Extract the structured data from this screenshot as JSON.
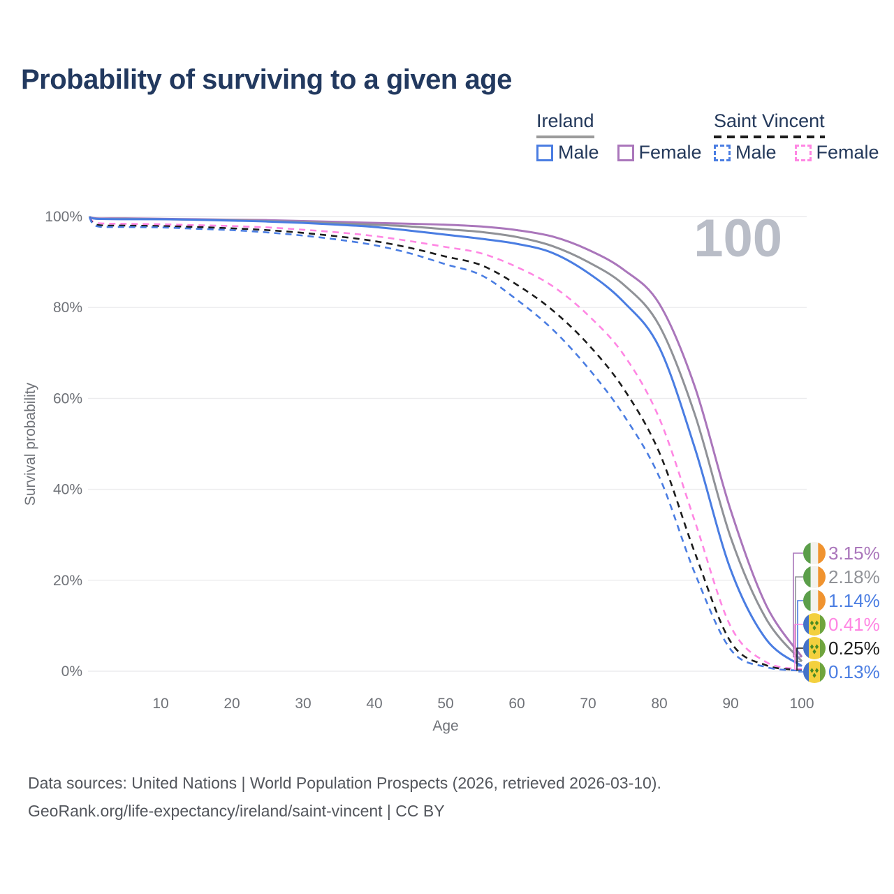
{
  "title": "Probability of surviving to a given age",
  "legend": {
    "groups": [
      {
        "label": "Ireland",
        "underline_style": "solid",
        "underline_color": "#9b9b9b",
        "items": [
          {
            "label": "Male",
            "color": "#4a7de2",
            "dash": false
          },
          {
            "label": "Female",
            "color": "#aa76bb",
            "dash": false
          }
        ]
      },
      {
        "label": "Saint Vincent",
        "underline_style": "dashed",
        "underline_color": "#1c1c1c",
        "items": [
          {
            "label": "Male",
            "color": "#4a7de2",
            "dash": true
          },
          {
            "label": "Female",
            "color": "#ff86e3",
            "dash": true
          }
        ]
      }
    ]
  },
  "chart_data": {
    "type": "line",
    "title": "Probability of surviving to a given age",
    "xlabel": "Age",
    "ylabel": "Survival probability",
    "xlim": [
      0,
      100
    ],
    "ylim": [
      0,
      100
    ],
    "grid": "horizontal",
    "legend_position": "top-right",
    "watermark": "100",
    "x_tick_values": [
      10,
      20,
      30,
      40,
      50,
      60,
      70,
      80,
      90,
      100
    ],
    "y_tick_values": [
      0,
      20,
      40,
      60,
      80,
      100
    ],
    "y_tick_labels": [
      "0%",
      "20%",
      "40%",
      "60%",
      "80%",
      "100%"
    ],
    "ages": [
      0,
      1,
      5,
      10,
      15,
      20,
      25,
      30,
      35,
      40,
      45,
      50,
      55,
      60,
      65,
      70,
      75,
      80,
      85,
      90,
      95,
      100
    ],
    "series": [
      {
        "name": "Ireland — Female",
        "country": "Ireland",
        "sex": "Female",
        "color": "#aa76bb",
        "dashed": false,
        "flag": "ireland",
        "end_label": "3.15%",
        "values": [
          99.9,
          99.6,
          99.6,
          99.5,
          99.4,
          99.3,
          99.2,
          99.0,
          98.8,
          98.6,
          98.4,
          98.2,
          97.8,
          97.0,
          95.6,
          92.7,
          88.3,
          80.8,
          62.5,
          35.5,
          14.5,
          3.15
        ]
      },
      {
        "name": "Ireland — Both sexes",
        "country": "Ireland",
        "sex": "Both sexes",
        "color": "#909297",
        "dashed": false,
        "flag": "ireland",
        "end_label": "2.18%",
        "values": [
          99.9,
          99.5,
          99.5,
          99.4,
          99.3,
          99.2,
          99.0,
          98.8,
          98.5,
          98.2,
          97.8,
          97.2,
          96.6,
          95.5,
          93.5,
          90.0,
          85.0,
          76.0,
          56.4,
          29.5,
          11.5,
          2.18
        ]
      },
      {
        "name": "Ireland — Male",
        "country": "Ireland",
        "sex": "Male",
        "color": "#4a7de2",
        "dashed": false,
        "flag": "ireland",
        "end_label": "1.14%",
        "values": [
          99.9,
          99.5,
          99.4,
          99.4,
          99.3,
          99.1,
          98.9,
          98.6,
          98.2,
          97.7,
          96.9,
          96.0,
          95.1,
          94.0,
          92.0,
          87.6,
          81.2,
          71.2,
          49.0,
          22.4,
          7.0,
          1.14
        ]
      },
      {
        "name": "Saint Vincent — Female",
        "country": "Saint Vincent",
        "sex": "Female",
        "color": "#ff86e3",
        "dashed": true,
        "flag": "saint-vincent",
        "end_label": "0.41%",
        "values": [
          99.9,
          98.6,
          98.4,
          98.3,
          98.1,
          97.9,
          97.6,
          97.1,
          96.5,
          95.7,
          94.6,
          93.3,
          91.9,
          88.9,
          84.7,
          78.3,
          69.6,
          55.6,
          32.9,
          9.9,
          2.0,
          0.41
        ]
      },
      {
        "name": "Saint Vincent — Both sexes",
        "country": "Saint Vincent",
        "sex": "Both sexes",
        "color": "#1c1c1c",
        "dashed": true,
        "flag": "saint-vincent",
        "end_label": "0.25%",
        "values": [
          99.9,
          98.2,
          98.0,
          97.9,
          97.7,
          97.4,
          97.0,
          96.4,
          95.6,
          94.6,
          93.1,
          91.2,
          89.3,
          85.0,
          79.4,
          71.9,
          62.1,
          48.1,
          26.0,
          6.5,
          1.3,
          0.25
        ]
      },
      {
        "name": "Saint Vincent — Male",
        "country": "Saint Vincent",
        "sex": "Male",
        "color": "#4a7de2",
        "dashed": true,
        "flag": "saint-vincent",
        "end_label": "0.13%",
        "values": [
          99.9,
          97.9,
          97.7,
          97.6,
          97.3,
          97.0,
          96.5,
          95.8,
          94.9,
          93.7,
          91.9,
          89.5,
          87.1,
          81.7,
          75.2,
          66.7,
          56.3,
          42.7,
          21.5,
          4.8,
          0.9,
          0.13
        ]
      }
    ],
    "flags": {
      "ireland": {
        "green": "#5b9e4a",
        "white": "#f3f2ee",
        "orange": "#f0932f"
      },
      "saint_vincent": {
        "blue": "#4472c8",
        "yellow": "#f3d03e",
        "green": "#6fa43c",
        "diamond": "#4b8a22"
      }
    }
  },
  "footer": {
    "line1": "Data sources: United Nations | World Population Prospects (2026, retrieved 2026-03-10).",
    "line2": "GeoRank.org/life-expectancy/ireland/saint-vincent | CC BY"
  }
}
